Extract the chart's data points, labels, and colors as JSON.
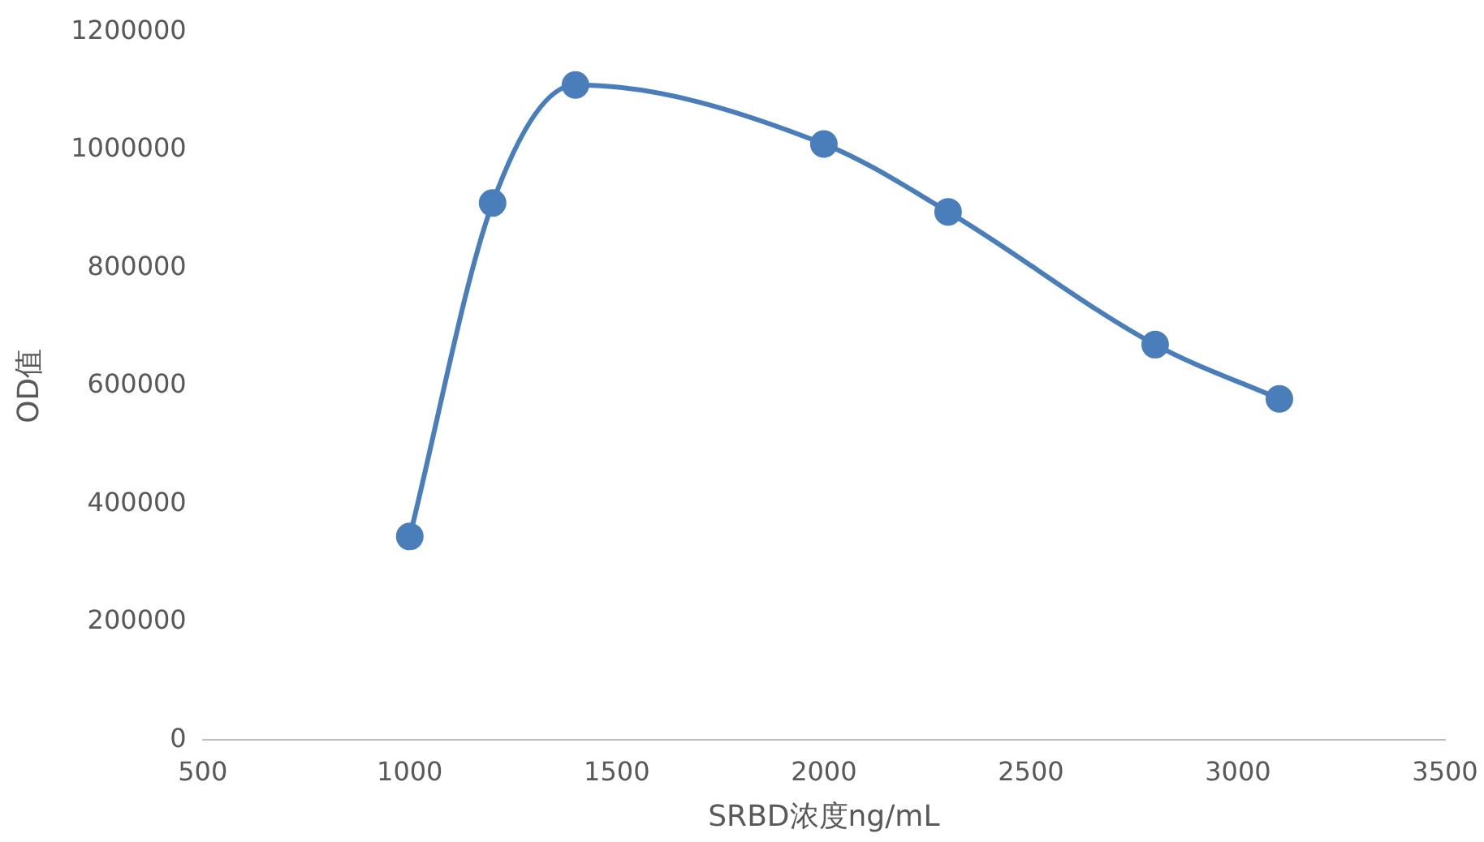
{
  "chart_data": {
    "type": "line",
    "xlabel": "SRBD浓度ng/mL",
    "ylabel": "OD值",
    "x": [
      1000,
      1200,
      1400,
      2000,
      2300,
      2800,
      3100
    ],
    "series": [
      {
        "color": "#4a7ebb",
        "values": [
          345000,
          910000,
          1110000,
          1010000,
          895000,
          670000,
          578000
        ]
      }
    ],
    "xlim": [
      500,
      3500
    ],
    "xticks": [
      500,
      1000,
      1500,
      2000,
      2500,
      3000,
      3500
    ],
    "ylim": [
      0,
      1200000
    ],
    "yticks": [
      0,
      200000,
      400000,
      600000,
      800000,
      1000000,
      1200000
    ],
    "grid": false,
    "legend": false,
    "marker": "circle",
    "line_style": "solid"
  }
}
